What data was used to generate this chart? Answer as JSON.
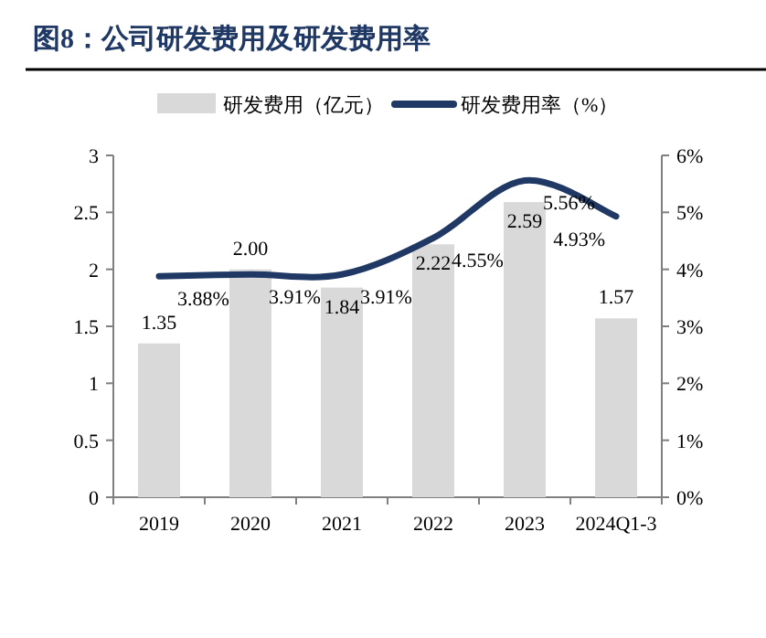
{
  "chart_data": {
    "type": "bar",
    "title": "图8：公司研发费用及研发费用率",
    "categories": [
      "2019",
      "2020",
      "2021",
      "2022",
      "2023",
      "2024Q1-3"
    ],
    "series": [
      {
        "name": "研发费用（亿元）",
        "color": "#d9d9d9",
        "values": [
          1.35,
          2.0,
          1.84,
          2.22,
          2.59,
          1.57
        ],
        "value_labels": [
          "1.35",
          "2.00",
          "1.84",
          "2.22",
          "2.59",
          "1.57"
        ]
      },
      {
        "name": "研发费用率（%）",
        "type": "line",
        "axis": "y2",
        "color": "#1f3864",
        "values": [
          3.88,
          3.91,
          3.91,
          4.55,
          5.56,
          4.93
        ],
        "value_labels": [
          "3.88%",
          "3.91%",
          "3.91%",
          "4.55%",
          "5.56%",
          "4.93%"
        ]
      }
    ],
    "ylim": [
      0,
      3
    ],
    "yticks": [
      0,
      0.5,
      1,
      1.5,
      2,
      2.5,
      3
    ],
    "y2lim": [
      0,
      6
    ],
    "y2ticks": [
      {
        "value": 0,
        "label": "0%"
      },
      {
        "value": 1,
        "label": "1%"
      },
      {
        "value": 2,
        "label": "2%"
      },
      {
        "value": 3,
        "label": "3%"
      },
      {
        "value": 4,
        "label": "4%"
      },
      {
        "value": 5,
        "label": "5%"
      },
      {
        "value": 6,
        "label": "6%"
      }
    ],
    "legend": "top",
    "grid": false,
    "marker": "none",
    "line_style": "solid"
  }
}
